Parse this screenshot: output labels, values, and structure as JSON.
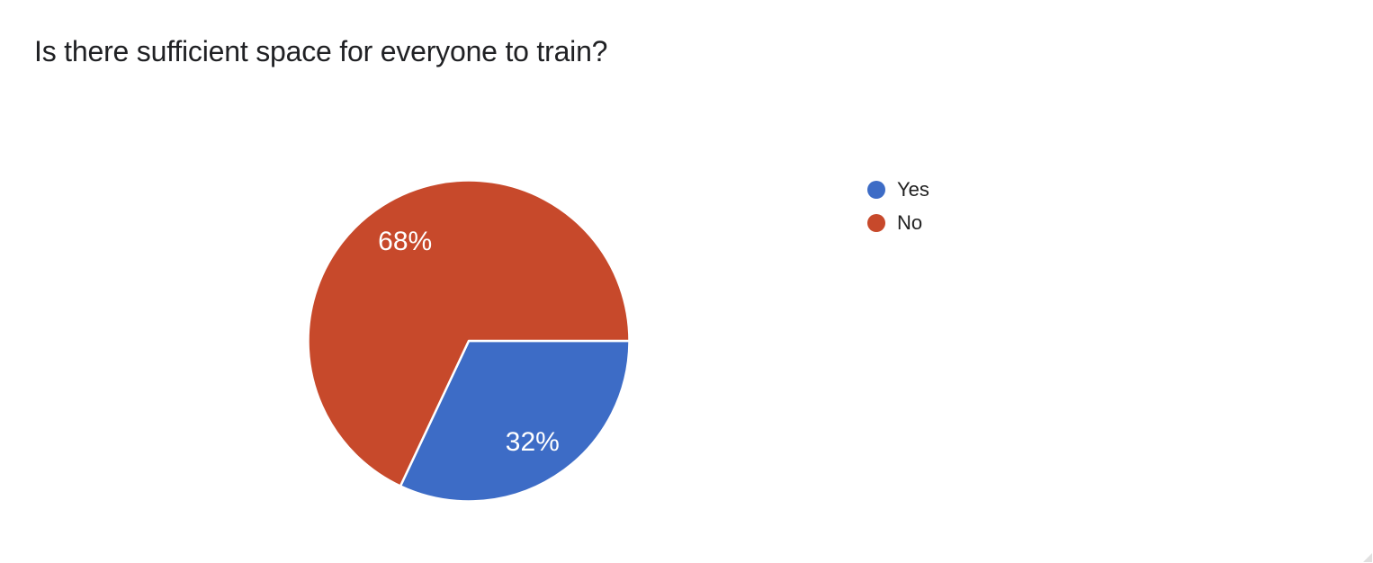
{
  "page": {
    "background_color": "#ffffff"
  },
  "header": {
    "title": "Is there sufficient space for everyone to train?"
  },
  "chart_data": {
    "type": "pie",
    "title": "Is there sufficient space for everyone to train?",
    "labels": [
      "Yes",
      "No"
    ],
    "values": [
      32,
      68
    ],
    "slice_labels": [
      "32%",
      "68%"
    ],
    "colors": [
      "#3D6CC6",
      "#C7492B"
    ],
    "slice_label_color": "#ffffff",
    "slice_stroke_color": "#ffffff",
    "start_angle_deg": 0,
    "direction": "clockwise",
    "legend_position": "right",
    "legend_text_color": "#212121"
  },
  "icons": {
    "resize_handle": "diagonal-grip"
  }
}
